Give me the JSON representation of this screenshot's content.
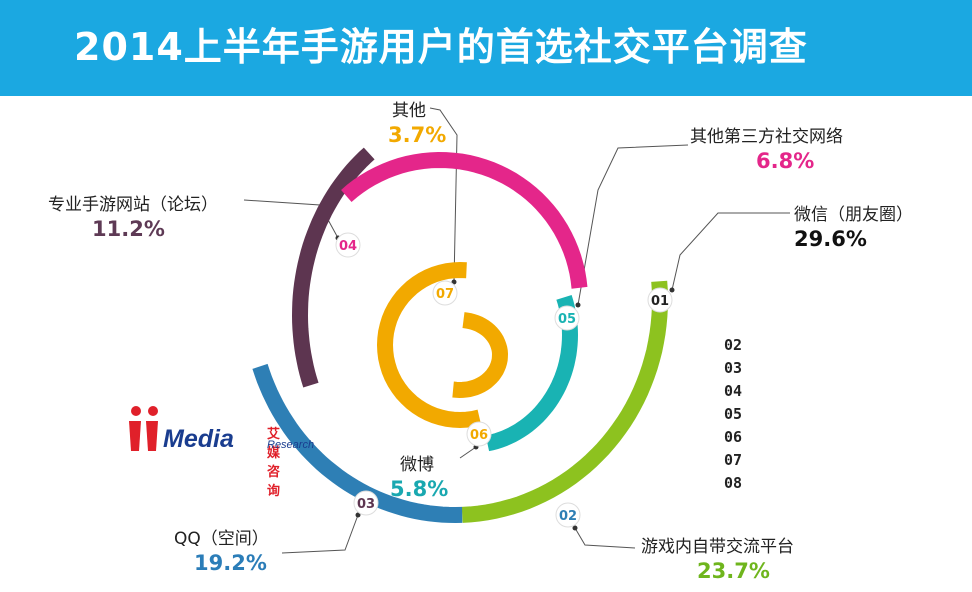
{
  "header": {
    "title": "2014上半年手游用户的首选社交平台调查",
    "background": "#1ba8e1"
  },
  "logo": {
    "word": "Media",
    "cn": "艾媒咨询",
    "en": "Research"
  },
  "legend_numbers": [
    "02",
    "03",
    "04",
    "05",
    "06",
    "07",
    "08"
  ],
  "chart_data": {
    "type": "spiral",
    "title": "2014上半年手游用户的首选社交平台调查",
    "unit": "%",
    "series": [
      {
        "index": "01",
        "name": "微信（朋友圈）",
        "value": 29.6,
        "value_label": "29.6%",
        "color": "#8dc21f",
        "label_color": "#111111"
      },
      {
        "index": "02",
        "name": "游戏内自带交流平台",
        "value": 23.7,
        "value_label": "23.7%",
        "color": "#2e7fb5",
        "label_color": "#6fb51d"
      },
      {
        "index": "03",
        "name": "QQ（空间）",
        "value": 19.2,
        "value_label": "19.2%",
        "color": "#5d3550",
        "label_color": "#2b7db8"
      },
      {
        "index": "04",
        "name": "专业手游网站（论坛）",
        "value": 11.2,
        "value_label": "11.2%",
        "color": "#e4268a",
        "label_color": "#5e3a55"
      },
      {
        "index": "05",
        "name": "其他第三方社交网络",
        "value": 6.8,
        "value_label": "6.8%",
        "color": "#19b3b3",
        "label_color": "#e4268a"
      },
      {
        "index": "06",
        "name": "微博",
        "value": 5.8,
        "value_label": "5.8%",
        "color": "#f2a900",
        "label_color": "#19a8b0"
      },
      {
        "index": "07",
        "name": "其他",
        "value": 3.7,
        "value_label": "3.7%",
        "color": "#f2a900",
        "label_color": "#f2a900"
      }
    ]
  }
}
